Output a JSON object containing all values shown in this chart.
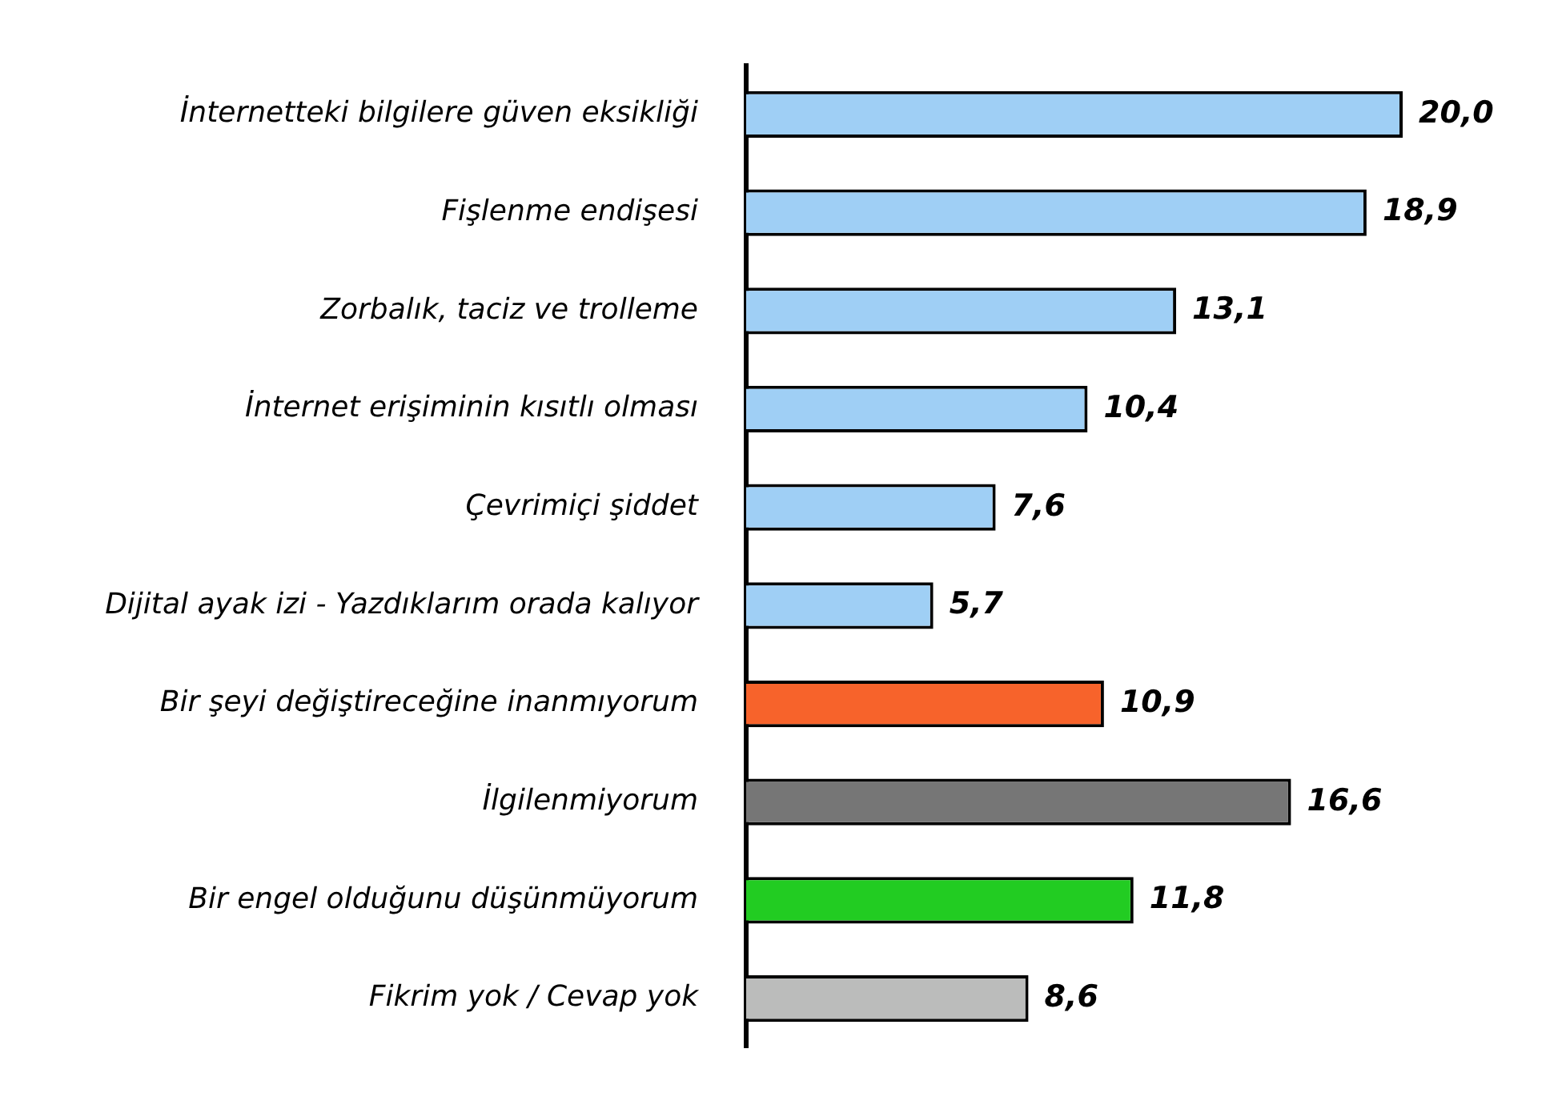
{
  "chart_data": {
    "type": "bar",
    "orientation": "horizontal",
    "categories": [
      "İnternetteki bilgilere güven eksikliği",
      "Fişlenme endişesi",
      "Zorbalık, taciz ve trolleme",
      "İnternet erişiminin kısıtlı olması",
      "Çevrimiçi şiddet",
      "Dijital ayak izi - Yazdıklarım orada kalıyor",
      "Bir şeyi değiştireceğine inanmıyorum",
      "İlgilenmiyorum",
      "Bir engel olduğunu düşünmüyorum",
      "Fikrim yok / Cevap yok"
    ],
    "values": [
      20.0,
      18.9,
      13.1,
      10.4,
      7.6,
      5.7,
      10.9,
      16.6,
      11.8,
      8.6
    ],
    "value_labels": [
      "20,0",
      "18,9",
      "13,1",
      "10,4",
      "7,6",
      "5,7",
      "10,9",
      "16,6",
      "11,8",
      "8,6"
    ],
    "colors": [
      "#9fcff5",
      "#9fcff5",
      "#9fcff5",
      "#9fcff5",
      "#9fcff5",
      "#9fcff5",
      "#f7632b",
      "#767676",
      "#22cc22",
      "#bbbcbb"
    ],
    "xlim": [
      0,
      20
    ],
    "tick_labels": "y"
  }
}
